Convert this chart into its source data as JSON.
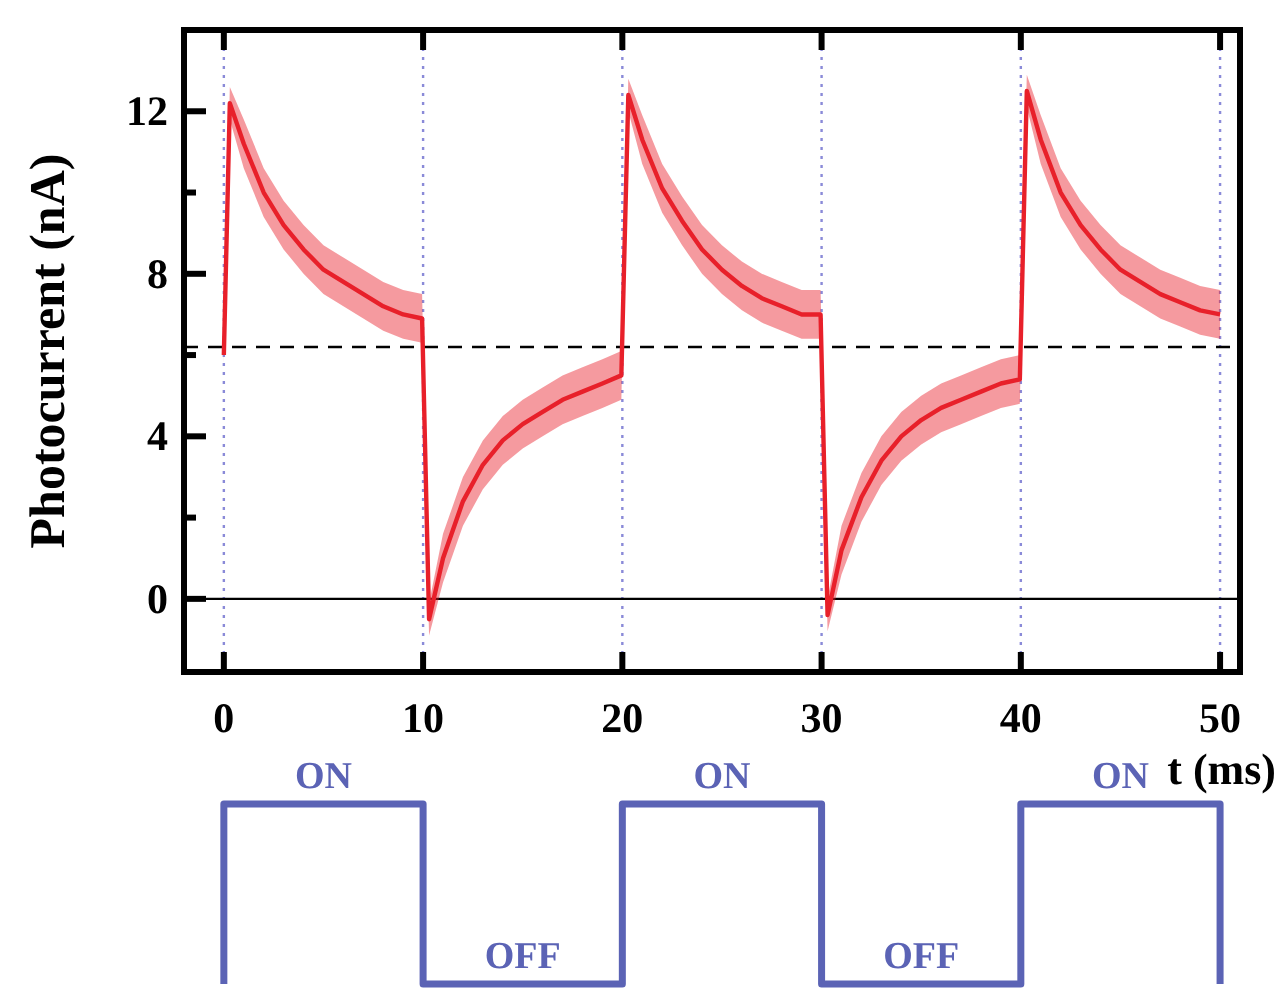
{
  "chart_data": {
    "type": "line",
    "xlabel": "t (ms)",
    "ylabel": "Photocurrent (nA)",
    "xlim": [
      -2,
      51
    ],
    "ylim": [
      -1.8,
      14
    ],
    "xticks": [
      0,
      10,
      20,
      30,
      40,
      50
    ],
    "yticks": [
      0,
      {
        "value": 2,
        "label": null
      },
      4,
      {
        "value": 6,
        "label": null
      },
      8,
      {
        "value": 10,
        "label": null
      },
      12
    ],
    "ref_lines": [
      {
        "axis": "x",
        "value": 0,
        "color": "#8a8ad8",
        "line_style": "dotted"
      },
      {
        "axis": "x",
        "value": 10,
        "color": "#8a8ad8",
        "line_style": "dotted"
      },
      {
        "axis": "x",
        "value": 20,
        "color": "#8a8ad8",
        "line_style": "dotted"
      },
      {
        "axis": "x",
        "value": 30,
        "color": "#8a8ad8",
        "line_style": "dotted"
      },
      {
        "axis": "x",
        "value": 40,
        "color": "#8a8ad8",
        "line_style": "dotted"
      },
      {
        "axis": "x",
        "value": 50,
        "color": "#8a8ad8",
        "line_style": "dotted"
      },
      {
        "axis": "y",
        "value": 0,
        "color": "#000000",
        "line_style": "solid"
      },
      {
        "axis": "y",
        "value": 6.2,
        "color": "#000000",
        "line_style": "dashed"
      }
    ],
    "annotations": [
      "ON",
      "OFF",
      "ON",
      "OFF",
      "ON"
    ],
    "x": [
      0,
      0.3,
      1,
      2,
      3,
      4,
      5,
      6,
      7,
      8,
      9,
      9.95,
      10.3,
      11,
      12,
      13,
      14,
      15,
      16,
      17,
      18,
      19,
      19.95,
      20.3,
      21,
      22,
      23,
      24,
      25,
      26,
      27,
      28,
      29,
      29.95,
      30.3,
      31,
      32,
      33,
      34,
      35,
      36,
      37,
      38,
      39,
      39.95,
      40.3,
      41,
      42,
      43,
      44,
      45,
      46,
      47,
      48,
      49,
      50
    ],
    "series": [
      {
        "color": "#e8202a",
        "values": [
          6.0,
          12.2,
          11.2,
          10.0,
          9.2,
          8.6,
          8.1,
          7.8,
          7.5,
          7.2,
          7.0,
          6.9,
          -0.5,
          1.0,
          2.4,
          3.3,
          3.9,
          4.3,
          4.6,
          4.9,
          5.1,
          5.3,
          5.5,
          12.4,
          11.3,
          10.1,
          9.3,
          8.6,
          8.1,
          7.7,
          7.4,
          7.2,
          7.0,
          7.0,
          -0.4,
          1.2,
          2.5,
          3.4,
          4.0,
          4.4,
          4.7,
          4.9,
          5.1,
          5.3,
          5.4,
          12.5,
          11.3,
          10.0,
          9.2,
          8.6,
          8.1,
          7.8,
          7.5,
          7.3,
          7.1,
          7.0
        ],
        "lower": [
          5.8,
          11.8,
          10.6,
          9.4,
          8.6,
          8.0,
          7.5,
          7.2,
          6.9,
          6.6,
          6.4,
          6.3,
          -0.9,
          0.4,
          1.8,
          2.7,
          3.3,
          3.7,
          4.0,
          4.3,
          4.5,
          4.7,
          4.9,
          12.0,
          10.7,
          9.5,
          8.7,
          8.0,
          7.5,
          7.1,
          6.8,
          6.6,
          6.4,
          6.4,
          -0.8,
          0.6,
          1.9,
          2.8,
          3.4,
          3.8,
          4.1,
          4.3,
          4.5,
          4.7,
          4.8,
          12.1,
          10.7,
          9.4,
          8.6,
          8.0,
          7.5,
          7.2,
          6.9,
          6.7,
          6.5,
          6.4
        ],
        "upper": [
          6.2,
          12.6,
          11.8,
          10.6,
          9.8,
          9.2,
          8.7,
          8.4,
          8.1,
          7.8,
          7.6,
          7.5,
          -0.1,
          1.6,
          3.0,
          3.9,
          4.5,
          4.9,
          5.2,
          5.5,
          5.7,
          5.9,
          6.1,
          12.8,
          11.9,
          10.7,
          9.9,
          9.2,
          8.7,
          8.3,
          8.0,
          7.8,
          7.6,
          7.6,
          0.0,
          1.8,
          3.1,
          4.0,
          4.6,
          5.0,
          5.3,
          5.5,
          5.7,
          5.9,
          6.0,
          12.9,
          11.9,
          10.6,
          9.8,
          9.2,
          8.7,
          8.4,
          8.1,
          7.9,
          7.7,
          7.6
        ]
      }
    ]
  }
}
